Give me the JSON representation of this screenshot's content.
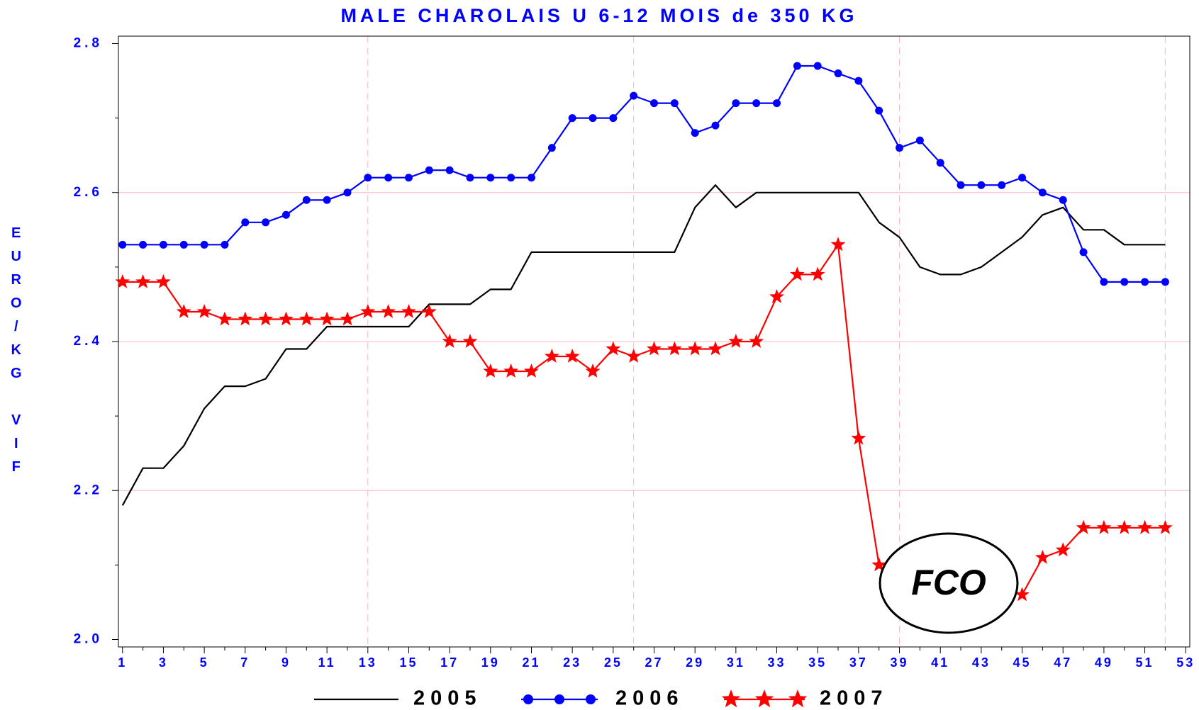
{
  "chart_data": {
    "type": "line",
    "title": "MALE CHAROLAIS U 6-12 MOIS de 350 KG",
    "y_label": "EURO/KG VIF",
    "annotation": "FCO",
    "x": [
      1,
      2,
      3,
      4,
      5,
      6,
      7,
      8,
      9,
      10,
      11,
      12,
      13,
      14,
      15,
      16,
      17,
      18,
      19,
      20,
      21,
      22,
      23,
      24,
      25,
      26,
      27,
      28,
      29,
      30,
      31,
      32,
      33,
      34,
      35,
      36,
      37,
      38,
      39,
      40,
      41,
      42,
      43,
      44,
      45,
      46,
      47,
      48,
      49,
      50,
      51,
      52
    ],
    "xlim": [
      0.8,
      53.2
    ],
    "xticks": [
      1,
      3,
      5,
      7,
      9,
      11,
      13,
      15,
      17,
      19,
      21,
      23,
      25,
      27,
      29,
      31,
      33,
      35,
      37,
      39,
      41,
      43,
      45,
      47,
      49,
      51,
      53
    ],
    "x_grid_lines": [
      13,
      26,
      39,
      52
    ],
    "ylim": [
      1.99,
      2.81
    ],
    "yticks": [
      {
        "value": 2,
        "label": "2.0"
      },
      2.2,
      2.4,
      2.6,
      2.8
    ],
    "y_grid_lines": [
      2.2,
      2.4,
      2.6
    ],
    "grid": true,
    "legend": "bottom",
    "series": [
      {
        "name": "2005",
        "color": "#000000",
        "marker": "none",
        "values": [
          2.18,
          2.23,
          2.23,
          2.26,
          2.31,
          2.34,
          2.34,
          2.35,
          2.39,
          2.39,
          2.42,
          2.42,
          2.42,
          2.42,
          2.42,
          2.45,
          2.45,
          2.45,
          2.47,
          2.47,
          2.52,
          2.52,
          2.52,
          2.52,
          2.52,
          2.52,
          2.52,
          2.52,
          2.58,
          2.61,
          2.58,
          2.6,
          2.6,
          2.6,
          2.6,
          2.6,
          2.6,
          2.56,
          2.54,
          2.5,
          2.49,
          2.49,
          2.5,
          2.52,
          2.54,
          2.57,
          2.58,
          2.55,
          2.55,
          2.53,
          2.53,
          2.53
        ]
      },
      {
        "name": "2006",
        "color": "#0000ff",
        "marker": "circle",
        "values": [
          2.53,
          2.53,
          2.53,
          2.53,
          2.53,
          2.53,
          2.56,
          2.56,
          2.57,
          2.59,
          2.59,
          2.6,
          2.62,
          2.62,
          2.62,
          2.63,
          2.63,
          2.62,
          2.62,
          2.62,
          2.62,
          2.66,
          2.7,
          2.7,
          2.7,
          2.73,
          2.72,
          2.72,
          2.68,
          2.69,
          2.72,
          2.72,
          2.72,
          2.77,
          2.77,
          2.76,
          2.75,
          2.71,
          2.66,
          2.67,
          2.64,
          2.61,
          2.61,
          2.61,
          2.62,
          2.6,
          2.59,
          2.52,
          2.48,
          2.48,
          2.48,
          2.48
        ]
      },
      {
        "name": "2007",
        "color": "#ff0000",
        "marker": "star",
        "values": [
          2.48,
          2.48,
          2.48,
          2.44,
          2.44,
          2.43,
          2.43,
          2.43,
          2.43,
          2.43,
          2.43,
          2.43,
          2.44,
          2.44,
          2.44,
          2.44,
          2.4,
          2.4,
          2.36,
          2.36,
          2.36,
          2.38,
          2.38,
          2.36,
          2.39,
          2.38,
          2.39,
          2.39,
          2.39,
          2.39,
          2.4,
          2.4,
          2.46,
          2.49,
          2.49,
          2.53,
          2.27,
          2.1,
          null,
          null,
          null,
          null,
          null,
          null,
          2.06,
          2.11,
          2.12,
          2.15,
          2.15,
          2.15,
          2.15,
          2.15
        ]
      }
    ]
  }
}
